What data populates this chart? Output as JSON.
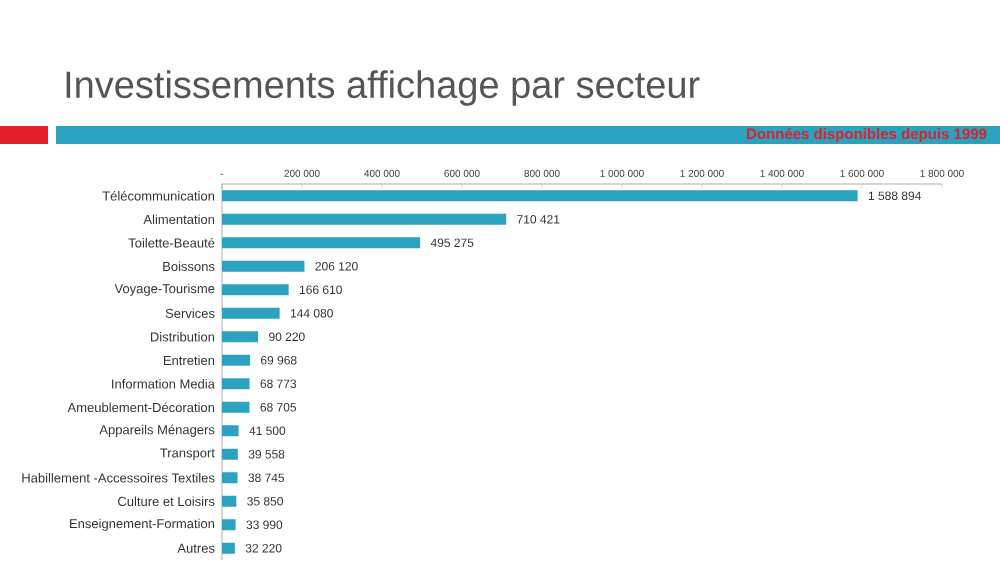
{
  "chart_data": {
    "type": "bar",
    "orientation": "horizontal",
    "title": "Investissements affichage par secteur",
    "subtitle": "Données disponibles depuis 1999",
    "categories": [
      "Télécommunication",
      "Alimentation",
      "Toilette-Beauté",
      "Boissons",
      "Voyage-Tourisme",
      "Services",
      "Distribution",
      "Entretien",
      "Information Media",
      "Ameublement-Décoration",
      "Appareils Ménagers",
      "Transport",
      "Habillement -Accessoires Textiles",
      "Culture et Loisirs",
      "Enseignement-Formation",
      "Autres"
    ],
    "values": [
      1588894,
      710421,
      495275,
      206120,
      166610,
      144080,
      90220,
      69968,
      68773,
      68705,
      41500,
      39558,
      38745,
      35850,
      33990,
      32220
    ],
    "value_labels": [
      "1 588 894",
      "710 421",
      "495 275",
      "206 120",
      "166 610",
      "144 080",
      "90 220",
      "69 968",
      "68 773",
      "68 705",
      "41 500",
      "39 558",
      "38 745",
      "35 850",
      "33 990",
      "32 220"
    ],
    "color": "#2aa2c0",
    "xlim": [
      0,
      1800000
    ],
    "xticks": [
      {
        "value": 0,
        "label": "-"
      },
      {
        "value": 200000,
        "label": "200 000"
      },
      {
        "value": 400000,
        "label": "400 000"
      },
      {
        "value": 600000,
        "label": "600 000"
      },
      {
        "value": 800000,
        "label": "800 000"
      },
      {
        "value": 1000000,
        "label": "1 000 000"
      },
      {
        "value": 1200000,
        "label": "1 200 000"
      },
      {
        "value": 1400000,
        "label": "1 400 000"
      },
      {
        "value": 1600000,
        "label": "1 600 000"
      },
      {
        "value": 1800000,
        "label": "1 800 000"
      }
    ],
    "grid": false
  }
}
